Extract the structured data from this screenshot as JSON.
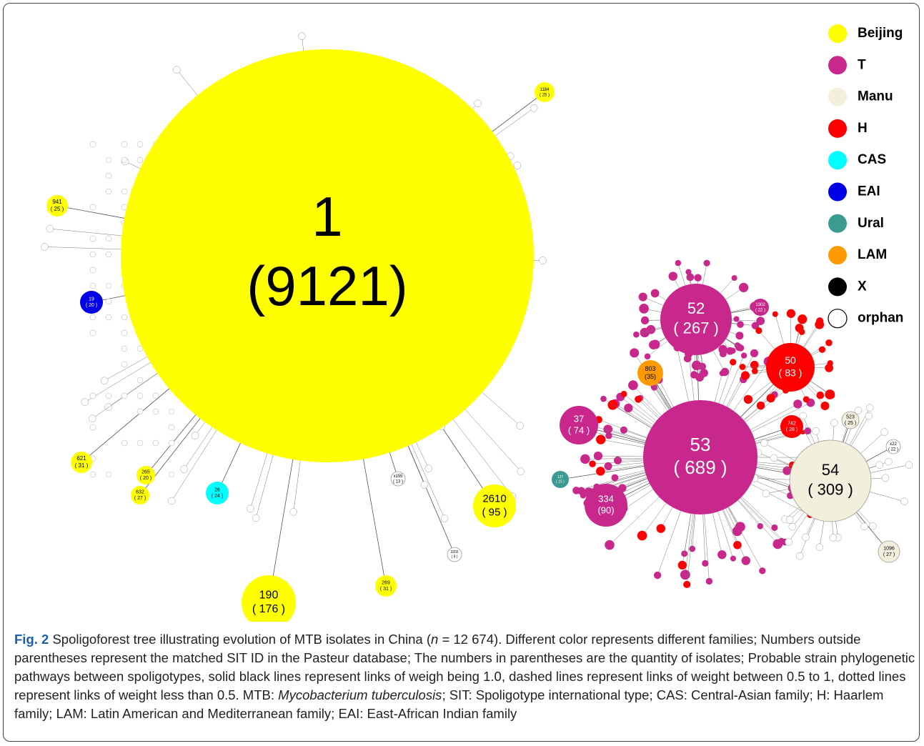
{
  "legend": [
    {
      "label": "Beijing",
      "color": "#ffff00"
    },
    {
      "label": "T",
      "color": "#c8288c"
    },
    {
      "label": "Manu",
      "color": "#f2f0dc"
    },
    {
      "label": "H",
      "color": "#ff0000"
    },
    {
      "label": "CAS",
      "color": "#00ffff"
    },
    {
      "label": "EAI",
      "color": "#0000e6"
    },
    {
      "label": "Ural",
      "color": "#3c9b91"
    },
    {
      "label": "LAM",
      "color": "#ff9b00"
    },
    {
      "label": "X",
      "color": "#000000"
    },
    {
      "label": "orphan",
      "color": "#ffffff"
    }
  ],
  "nodes": [
    {
      "id": "1",
      "count": "(9121)"
    },
    {
      "id": "52",
      "count": "( 267 )"
    },
    {
      "id": "53",
      "count": "( 689 )"
    },
    {
      "id": "54",
      "count": "( 309 )"
    },
    {
      "id": "50",
      "count": "( 83 )"
    },
    {
      "id": "37",
      "count": "( 74 )"
    },
    {
      "id": "334",
      "count": "(90)"
    },
    {
      "id": "803",
      "count": "(35)"
    },
    {
      "id": "2610",
      "count": "( 95 )"
    },
    {
      "id": "190",
      "count": "( 176 )"
    },
    {
      "id": "621",
      "count": "( 31 )"
    },
    {
      "id": "265",
      "count": "( 20 )"
    },
    {
      "id": "632",
      "count": "( 27 )"
    },
    {
      "id": "941",
      "count": "( 25 )"
    },
    {
      "id": "19",
      "count": "( 20 )"
    },
    {
      "id": "26",
      "count": "( 24 )"
    },
    {
      "id": "1184",
      "count": "( 25 )"
    },
    {
      "id": "742",
      "count": "( 28 )"
    },
    {
      "id": "523",
      "count": "( 25 )"
    },
    {
      "id": "1096",
      "count": "( 27 )"
    },
    {
      "id": "127",
      "count": "( 15 )"
    },
    {
      "id": "1302",
      "count": "( 22 )"
    },
    {
      "id": "269",
      "count": "( 31 )"
    },
    {
      "id": "x155",
      "count": "( 13 )"
    },
    {
      "id": "x22",
      "count": "( 22 )"
    },
    {
      "id": "3202",
      "count": "( 9 )"
    }
  ],
  "caption": {
    "label": "Fig. 2",
    "parts": [
      {
        "text": " Spoligoforest tree illustrating evolution of MTB isolates in China ("
      },
      {
        "text": "n",
        "italic": true
      },
      {
        "text": " = 12 674). Different color represents different families; Numbers outside parentheses represent the matched SIT ID in the Pasteur database; The numbers in parentheses are the quantity of isolates; Probable strain phylogenetic pathways between spoligotypes, solid black lines represent links of weigh being 1.0, dashed lines represent links of weight between 0.5 to 1, dotted lines represent links of weight less than 0.5. MTB: "
      },
      {
        "text": "Mycobacterium tuberculosis",
        "italic": true
      },
      {
        "text": "; SIT: Spoligotype international type; CAS: Central-Asian family; H: Haarlem family; LAM: Latin American and Mediterranean family; EAI: East-African Indian family"
      }
    ]
  }
}
